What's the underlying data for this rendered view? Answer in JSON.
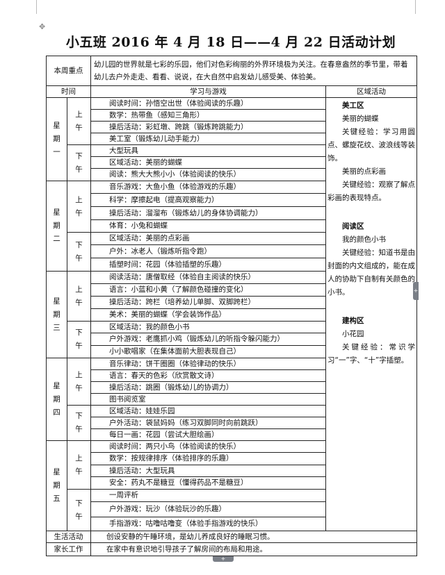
{
  "title": "小五班 2016 年 4 月 18 日——4 月 22 日活动计划",
  "focus": {
    "label": "本周重点",
    "text": "幼儿园的世界就是七彩的乐园，他们对色彩绚丽的外界环境极为关注。在春意盎然的季节里，带着幼儿去户外走走、看看、说说，在大自然中启发幼儿感受美、体验美。"
  },
  "headers": {
    "time": "时间",
    "learning": "学习与游戏",
    "region": "区域活动"
  },
  "days": [
    {
      "name": "星期一",
      "am_label": "上午",
      "pm_label": "下午",
      "am": [
        "阅读时间：孙悟空出世（体验阅读的乐趣）",
        "数学：热带鱼（感知三角形）",
        "操后活动：彩虹墩、跨跳（锻炼跨跳能力）",
        "美工室（锻炼幼儿动手能力）"
      ],
      "pm": [
        "大型玩具",
        "区域活动：美丽的蝴蝶",
        "阅读：熊大大熊小小（体验阅读的快乐）"
      ]
    },
    {
      "name": "星期二",
      "am_label": "上午",
      "pm_label": "下午",
      "am": [
        "音乐游戏：大鱼小鱼（体验游戏的乐趣）",
        "科学：摩擦起电（提高观察能力）",
        "操后活动：溜溜布（锻炼幼儿的身体协调能力）",
        "体育：小兔和蝴蝶"
      ],
      "pm": [
        "区域活动：美丽的点彩画",
        "户外：冰老人（锻炼听指令跑）",
        "插塑时间：花园（体验插塑的乐趣）"
      ]
    },
    {
      "name": "星期三",
      "am_label": "上午",
      "pm_label": "下午",
      "am": [
        "阅读活动：唐僧取经（体验自主阅读的快乐）",
        "语言：小蓝和小黄（了解颜色碰撞的变化）",
        "操后活动：跨栏（培养幼儿单脚、双脚跨栏）",
        "美术：美丽的蝴蝶（学会装饰作品）"
      ],
      "pm": [
        "区域活动：我的颜色小书",
        "户外游戏：老鹰抓小鸡（锻炼幼儿的听指令躲闪能力）",
        "小小歌唱家（在集体面前大胆表现自己）"
      ]
    },
    {
      "name": "星期四",
      "am_label": "上午",
      "pm_label": "下午",
      "am": [
        "音乐律动：饼干圈圈（体验律动的快乐）",
        "语言：春天的色彩（欣赏散文诗）",
        "操后活动：跳圈（锻炼幼儿的协调力）",
        "图书阅览室"
      ],
      "pm": [
        "区域活动：娃娃乐园",
        "户外活动：袋鼠妈妈（练习双脚同时向前跳跃）",
        "每日一画：花园（尝试大胆绘画）"
      ]
    },
    {
      "name": "星期五",
      "am_label": "上午",
      "pm_label": "下午",
      "am": [
        "阅读时间：两只小鸟（体验阅读的快乐）",
        "数学：按规律排序（体验排序的乐趣）",
        "操后活动：大型玩具",
        "安全：药丸不是糖豆（懂得药品不是糖豆）"
      ],
      "pm": [
        "一周评析",
        "户外游戏：玩沙（体验玩沙的乐趣）",
        "手指游戏：咕噜咕噜变（体验手指游戏的快乐）"
      ]
    }
  ],
  "regions": [
    {
      "area": "美工区",
      "items": [
        {
          "title": "美丽的蝴蝶",
          "experience": "关键经验：学习用圆点、螺旋花纹、波浪线等装饰。"
        },
        {
          "title": "美丽的点彩画",
          "experience": "关键经验：观察了解点彩画的表现特点。"
        }
      ]
    },
    {
      "area": "阅读区",
      "items": [
        {
          "title": "我的颜色小书",
          "experience": "关键经验：知道书是由封面的内文组成的，能在成人的协助下自制有关颜色的小书。"
        }
      ]
    },
    {
      "area": "建构区",
      "items": [
        {
          "title": "小花园",
          "experience": "关键经验：常识学习“一”字、“十”字插塑。"
        }
      ]
    }
  ],
  "life": {
    "label": "生活活动",
    "text": "创设安静的午睡环境，是幼儿养成良好的睡眠习惯。"
  },
  "parent": {
    "label": "家长工作",
    "text": "在家中有意识地引导孩子了解房间的布局和用途。"
  },
  "icons": {
    "move_handle": "move-icon",
    "add_row": "plus-icon",
    "add_col": "plus-icon"
  }
}
